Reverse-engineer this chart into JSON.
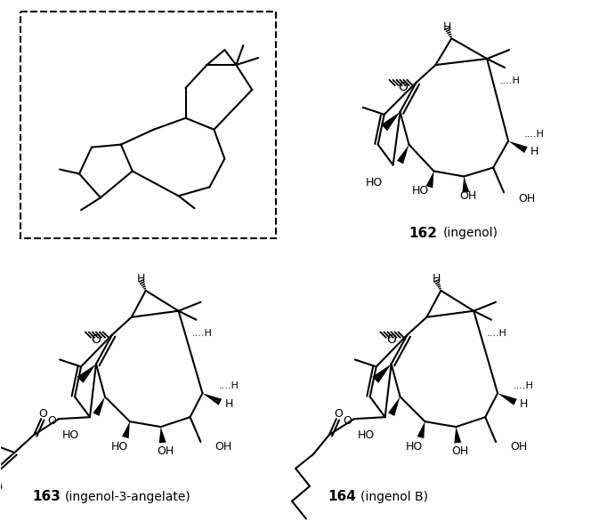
{
  "background_color": "#ffffff",
  "fig_width": 6.91,
  "fig_height": 5.86,
  "dpi": 100,
  "label_162": "162",
  "label_162_name": "(ingenol)",
  "label_163": "163",
  "label_163_name": "(ingenol-3-angelate)",
  "label_164": "164",
  "label_164_name": "(ingenol B)"
}
